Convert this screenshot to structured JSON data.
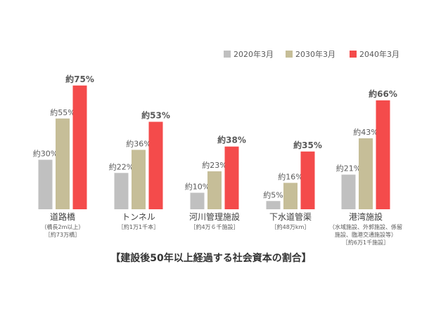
{
  "chart_data": {
    "type": "bar",
    "title": "【建設後50年以上経過する社会資本の割合】",
    "categories": [
      "道路橋",
      "トンネル",
      "河川管理施設",
      "下水道管渠",
      "港湾施設"
    ],
    "category_notes": [
      [
        "（橋長2m以上）",
        "［約73万橋］"
      ],
      [
        "［約1万1千本］"
      ],
      [
        "［約4万６千施設］"
      ],
      [
        "［約48万km］"
      ],
      [
        "（水域施設、外郭施設、係留",
        "施設、臨港交通施設等）",
        "［約6万1千施設］"
      ]
    ],
    "series": [
      {
        "name": "2020年3月",
        "values": [
          30,
          22,
          10,
          5,
          21
        ],
        "labels": [
          "約30%",
          "約22%",
          "約10%",
          "約5%",
          "約21%"
        ]
      },
      {
        "name": "2030年3月",
        "values": [
          55,
          36,
          23,
          16,
          43
        ],
        "labels": [
          "約55%",
          "約36%",
          "約23%",
          "約16%",
          "約43%"
        ]
      },
      {
        "name": "2040年3月",
        "values": [
          75,
          53,
          38,
          35,
          66
        ],
        "labels": [
          "約75%",
          "約53%",
          "約38%",
          "約35%",
          "約66%"
        ]
      }
    ],
    "colors": [
      "#c0c0c0",
      "#c6be98",
      "#f44b4b"
    ],
    "unit": "%",
    "ylim": [
      0,
      80
    ],
    "grid": false,
    "legend": "top-right"
  }
}
